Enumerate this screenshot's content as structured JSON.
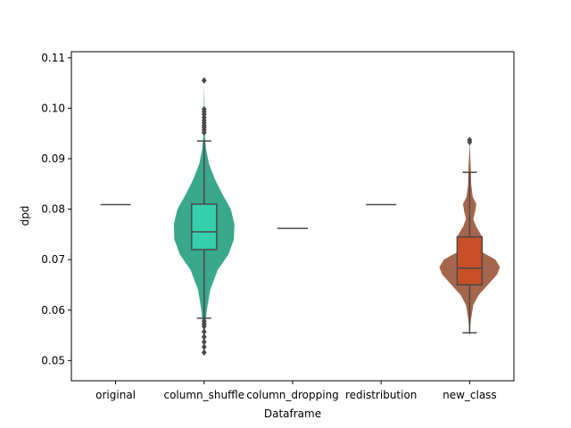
{
  "chart_data": {
    "type": "box",
    "title": "",
    "xlabel": "Dataframe",
    "ylabel": "dpd",
    "ylim": [
      0.046,
      0.1112
    ],
    "yticks": [
      0.05,
      0.06,
      0.07,
      0.08,
      0.09,
      0.1,
      0.11
    ],
    "ytick_labels": [
      "0.05",
      "0.06",
      "0.07",
      "0.08",
      "0.09",
      "0.10",
      "0.11"
    ],
    "grid": false,
    "categories": [
      "original",
      "column_shuffle",
      "column_dropping",
      "redistribution",
      "new_class"
    ],
    "groups": [
      {
        "category": "original",
        "constant": 0.0809
      },
      {
        "category": "column_shuffle",
        "box_color": "#34d0ac",
        "violin_color": "#3aa88a",
        "whisker_low": 0.0584,
        "q1": 0.072,
        "median": 0.0755,
        "q3": 0.081,
        "whisker_high": 0.0935,
        "violin_min": 0.0525,
        "violin_max": 0.1055,
        "violin_profile": [
          [
            0.0525,
            0.0
          ],
          [
            0.056,
            0.03
          ],
          [
            0.06,
            0.09
          ],
          [
            0.064,
            0.2
          ],
          [
            0.068,
            0.45
          ],
          [
            0.071,
            0.8
          ],
          [
            0.074,
            0.98
          ],
          [
            0.077,
            1.0
          ],
          [
            0.08,
            0.88
          ],
          [
            0.083,
            0.6
          ],
          [
            0.086,
            0.35
          ],
          [
            0.089,
            0.16
          ],
          [
            0.092,
            0.06
          ],
          [
            0.095,
            0.02
          ],
          [
            0.1055,
            0.0
          ]
        ],
        "outliers": [
          0.1055,
          0.0998,
          0.0993,
          0.0988,
          0.0982,
          0.0976,
          0.0971,
          0.0966,
          0.0962,
          0.0957,
          0.0952,
          0.0578,
          0.0573,
          0.0568,
          0.0557,
          0.0547,
          0.0537,
          0.0527,
          0.0516
        ]
      },
      {
        "category": "column_dropping",
        "constant": 0.0762
      },
      {
        "category": "redistribution",
        "constant": 0.0809
      },
      {
        "category": "new_class",
        "box_color": "#c84f25",
        "violin_color": "#a5664d",
        "whisker_low": 0.0555,
        "q1": 0.065,
        "median": 0.0683,
        "q3": 0.0745,
        "whisker_high": 0.0873,
        "violin_min": 0.0545,
        "violin_max": 0.0935,
        "violin_profile": [
          [
            0.0545,
            0.0
          ],
          [
            0.058,
            0.04
          ],
          [
            0.061,
            0.12
          ],
          [
            0.063,
            0.3
          ],
          [
            0.065,
            0.6
          ],
          [
            0.067,
            0.9
          ],
          [
            0.0685,
            1.0
          ],
          [
            0.07,
            0.85
          ],
          [
            0.0715,
            0.4
          ],
          [
            0.073,
            0.35
          ],
          [
            0.0745,
            0.42
          ],
          [
            0.0765,
            0.22
          ],
          [
            0.078,
            0.12
          ],
          [
            0.0795,
            0.18
          ],
          [
            0.081,
            0.22
          ],
          [
            0.0825,
            0.1
          ],
          [
            0.085,
            0.05
          ],
          [
            0.088,
            0.04
          ],
          [
            0.0905,
            0.02
          ],
          [
            0.0935,
            0.0
          ]
        ],
        "outliers": [
          0.0937,
          0.0933
        ]
      }
    ]
  }
}
